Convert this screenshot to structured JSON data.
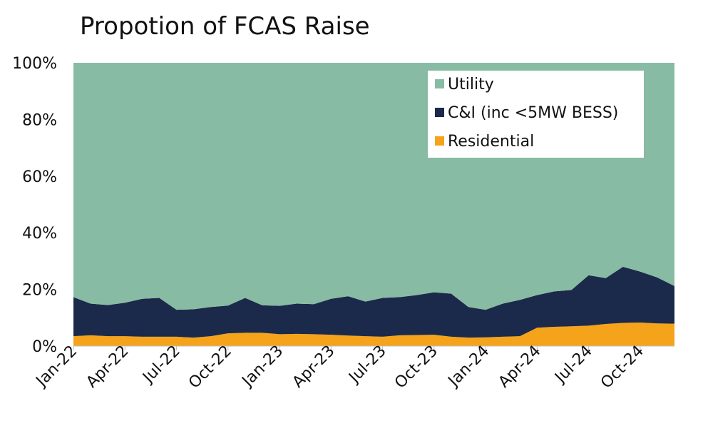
{
  "chart_data": {
    "type": "area",
    "stacked": true,
    "percent": true,
    "title": "Propotion of FCAS Raise",
    "xlabel": "",
    "ylabel": "",
    "ylim": [
      0,
      100
    ],
    "yticks": [
      "0%",
      "20%",
      "40%",
      "60%",
      "80%",
      "100%"
    ],
    "tick_labels": [
      "Jan-22",
      "Apr-22",
      "Jul-22",
      "Oct-22",
      "Jan-23",
      "Apr-23",
      "Jul-23",
      "Oct-23",
      "Jan-24",
      "Apr-24",
      "Jul-24",
      "Oct-24"
    ],
    "x": [
      "Jan-22",
      "Feb-22",
      "Mar-22",
      "Apr-22",
      "May-22",
      "Jun-22",
      "Jul-22",
      "Aug-22",
      "Sep-22",
      "Oct-22",
      "Nov-22",
      "Dec-22",
      "Jan-23",
      "Feb-23",
      "Mar-23",
      "Apr-23",
      "May-23",
      "Jun-23",
      "Jul-23",
      "Aug-23",
      "Sep-23",
      "Oct-23",
      "Nov-23",
      "Dec-23",
      "Jan-24",
      "Feb-24",
      "Mar-24",
      "Apr-24",
      "May-24",
      "Jun-24",
      "Jul-24",
      "Aug-24",
      "Sep-24",
      "Oct-24",
      "Nov-24",
      "Dec-24"
    ],
    "series": [
      {
        "name": "Residential",
        "color": "#F5A31A",
        "values": [
          3.5,
          3.8,
          3.5,
          3.5,
          3.3,
          3.3,
          3.3,
          3.0,
          3.5,
          4.5,
          4.7,
          4.7,
          4.2,
          4.3,
          4.2,
          4.0,
          3.7,
          3.5,
          3.3,
          3.8,
          3.9,
          4.0,
          3.3,
          3.0,
          3.1,
          3.3,
          3.5,
          6.5,
          6.8,
          7.0,
          7.2,
          7.8,
          8.2,
          8.3,
          8.0,
          7.9
        ]
      },
      {
        "name": "C&I (inc <5MW BESS)",
        "color": "#1B2A4A",
        "values": [
          13.8,
          11.2,
          11.0,
          11.8,
          13.4,
          13.7,
          9.5,
          10.0,
          10.3,
          9.8,
          12.3,
          9.7,
          10.0,
          10.7,
          10.6,
          12.7,
          13.9,
          12.2,
          13.7,
          13.5,
          14.1,
          15.0,
          15.2,
          10.8,
          9.7,
          11.7,
          12.8,
          11.5,
          12.5,
          12.8,
          17.8,
          16.2,
          19.8,
          18.0,
          16.2,
          13.3
        ]
      },
      {
        "name": "Utility",
        "color": "#88BBA3",
        "values": [
          82.7,
          85.0,
          85.5,
          84.7,
          83.3,
          83.0,
          87.2,
          87.0,
          86.2,
          85.7,
          83.0,
          85.6,
          85.8,
          85.0,
          85.2,
          83.3,
          82.4,
          84.3,
          83.0,
          82.7,
          82.0,
          81.0,
          81.5,
          86.2,
          87.2,
          85.0,
          83.7,
          82.0,
          80.7,
          80.2,
          75.0,
          76.0,
          72.0,
          73.7,
          75.8,
          78.8
        ]
      }
    ],
    "legend": {
      "position": "top-right",
      "entries": [
        "Utility",
        "C&I (inc <5MW BESS)",
        "Residential"
      ]
    }
  }
}
